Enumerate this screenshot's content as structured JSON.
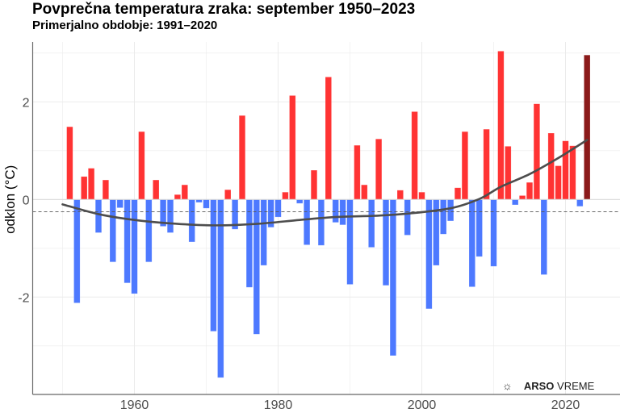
{
  "chart_data": {
    "type": "bar",
    "title": "Povprečna temperatura zraka: september 1950–2023",
    "subtitle": "Primerjalno obdobje: 1991–2020",
    "xlabel": "",
    "ylabel": "odklon (°C)",
    "xlim": [
      1946,
      2027
    ],
    "ylim": [
      -4.0,
      3.2
    ],
    "x_ticks": [
      1960,
      1980,
      2000,
      2020
    ],
    "x_tick_labels": [
      "1960",
      "1980",
      "2000",
      "2020"
    ],
    "y_ticks": [
      -2,
      0,
      2
    ],
    "y_tick_labels": [
      "-2",
      "0",
      "2"
    ],
    "grid": true,
    "colors": {
      "positive": "#ff3333",
      "negative": "#4d79ff",
      "highlight": "#8b1a1a",
      "trend": "#4d4d4d",
      "reference": "#555555"
    },
    "highlight_year": 2023,
    "reference_line": -0.25,
    "x": [
      1951,
      1952,
      1953,
      1954,
      1955,
      1956,
      1957,
      1958,
      1959,
      1960,
      1961,
      1962,
      1963,
      1964,
      1965,
      1966,
      1967,
      1968,
      1969,
      1970,
      1971,
      1972,
      1973,
      1974,
      1975,
      1976,
      1977,
      1978,
      1979,
      1980,
      1981,
      1982,
      1983,
      1984,
      1985,
      1986,
      1987,
      1988,
      1989,
      1990,
      1991,
      1992,
      1993,
      1994,
      1995,
      1996,
      1997,
      1998,
      1999,
      2000,
      2001,
      2002,
      2003,
      2004,
      2005,
      2006,
      2007,
      2008,
      2009,
      2010,
      2011,
      2012,
      2013,
      2014,
      2015,
      2016,
      2017,
      2018,
      2019,
      2020,
      2021,
      2022,
      2023
    ],
    "values": [
      1.49,
      -2.12,
      0.47,
      0.64,
      -0.68,
      0.4,
      -1.28,
      -0.17,
      -1.71,
      -1.93,
      1.39,
      -1.28,
      0.4,
      -0.55,
      -0.68,
      0.1,
      0.3,
      -0.87,
      -0.06,
      -0.18,
      -2.7,
      -3.65,
      0.2,
      -0.61,
      1.72,
      -1.8,
      -2.76,
      -1.35,
      -0.57,
      -0.36,
      0.15,
      2.13,
      -0.08,
      -0.93,
      0.6,
      -0.94,
      2.51,
      -0.47,
      -0.52,
      -1.74,
      1.11,
      0.3,
      -0.98,
      1.24,
      -1.76,
      -3.2,
      0.19,
      -0.73,
      1.8,
      0.15,
      -2.24,
      -1.35,
      -0.71,
      -0.44,
      0.24,
      1.39,
      -1.79,
      -1.17,
      1.44,
      -1.37,
      3.04,
      1.09,
      -0.11,
      0.08,
      0.35,
      1.96,
      -1.54,
      1.36,
      0.69,
      1.2,
      1.1,
      -0.14,
      2.96
    ],
    "trend": {
      "x": [
        1950,
        1955,
        1960,
        1965,
        1971,
        1977,
        1983,
        1988,
        1994,
        1998,
        2004,
        2008,
        2011,
        2015,
        2019,
        2023
      ],
      "y": [
        -0.1,
        -0.3,
        -0.42,
        -0.49,
        -0.53,
        -0.5,
        -0.42,
        -0.36,
        -0.33,
        -0.29,
        -0.18,
        0.01,
        0.26,
        0.52,
        0.85,
        1.22
      ]
    }
  },
  "watermark": {
    "icon": "sun-rays-icon",
    "brand_bold": "ARSO",
    "brand_light": "VREME"
  }
}
